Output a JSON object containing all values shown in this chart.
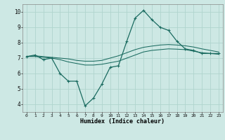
{
  "background_color": "#cde8e4",
  "grid_color": "#b0d4ce",
  "line_color": "#1a6b60",
  "x_ticks": [
    0,
    1,
    2,
    3,
    4,
    5,
    6,
    7,
    8,
    9,
    10,
    11,
    12,
    13,
    14,
    15,
    16,
    17,
    18,
    19,
    20,
    21,
    22,
    23
  ],
  "xlim": [
    -0.5,
    23.5
  ],
  "ylim": [
    3.5,
    10.5
  ],
  "y_ticks": [
    4,
    5,
    6,
    7,
    8,
    9,
    10
  ],
  "xlabel": "Humidex (Indice chaleur)",
  "line_zigzag": {
    "x": [
      0,
      1,
      2,
      3,
      4,
      5,
      6,
      7,
      8,
      9,
      10,
      11,
      12,
      13,
      14,
      15,
      16,
      17,
      18,
      19,
      20,
      21,
      22,
      23
    ],
    "y": [
      7.1,
      7.2,
      6.9,
      7.0,
      6.0,
      5.5,
      5.5,
      3.9,
      4.4,
      5.3,
      6.4,
      6.5,
      8.1,
      9.6,
      10.1,
      9.5,
      9.0,
      8.8,
      8.1,
      7.6,
      7.5,
      7.3,
      7.3,
      7.3
    ]
  },
  "line_upper": {
    "x": [
      0,
      1,
      2,
      3,
      4,
      5,
      6,
      7,
      8,
      9,
      10,
      11,
      12,
      13,
      14,
      15,
      16,
      17,
      18,
      19,
      20,
      21,
      22,
      23
    ],
    "y": [
      7.1,
      7.15,
      7.1,
      7.05,
      7.0,
      6.95,
      6.85,
      6.8,
      6.8,
      6.85,
      7.0,
      7.15,
      7.35,
      7.55,
      7.7,
      7.78,
      7.85,
      7.88,
      7.85,
      7.8,
      7.72,
      7.6,
      7.5,
      7.4
    ]
  },
  "line_lower": {
    "x": [
      0,
      1,
      2,
      3,
      4,
      5,
      6,
      7,
      8,
      9,
      10,
      11,
      12,
      13,
      14,
      15,
      16,
      17,
      18,
      19,
      20,
      21,
      22,
      23
    ],
    "y": [
      7.1,
      7.1,
      7.05,
      7.0,
      6.9,
      6.75,
      6.65,
      6.55,
      6.55,
      6.6,
      6.7,
      6.8,
      7.0,
      7.2,
      7.4,
      7.5,
      7.55,
      7.6,
      7.58,
      7.55,
      7.45,
      7.35,
      7.3,
      7.25
    ]
  }
}
